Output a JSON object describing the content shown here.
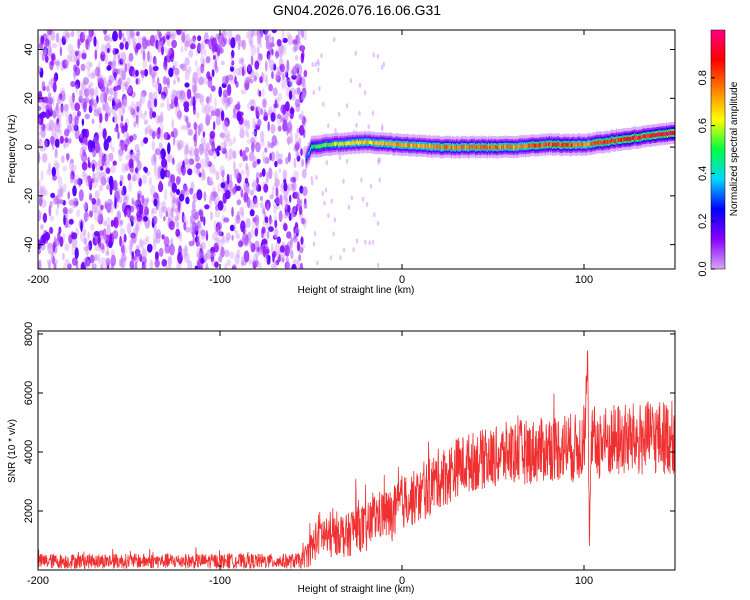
{
  "figure": {
    "title": "GN04.2026.076.16.06.G31"
  },
  "chart_data": [
    {
      "type": "heatmap",
      "title": "GN04.2026.076.16.06.G31",
      "xlabel": "Height of straight line (km)",
      "ylabel": "Frequency (Hz)",
      "xlim": [
        -200,
        150
      ],
      "ylim": [
        -50,
        48
      ],
      "x_ticks": [
        -200,
        -100,
        0,
        100
      ],
      "y_ticks": [
        -40,
        -20,
        0,
        20,
        40
      ],
      "grid": false,
      "colorbar": {
        "label": "Normalized spectral amplitude",
        "range": [
          0.0,
          1.0
        ],
        "ticks": [
          0.0,
          0.2,
          0.4,
          0.6,
          0.8
        ],
        "colormap": [
          "#d8a6f8",
          "#8800ff",
          "#0000ff",
          "#00d8ff",
          "#00ff40",
          "#ffff00",
          "#ff8000",
          "#ff0000",
          "#ff0080"
        ]
      },
      "noise_region_x": [
        -200,
        -53
      ],
      "signal_band": {
        "x": [
          -53,
          -50,
          -40,
          -20,
          0,
          20,
          40,
          60,
          80,
          90,
          100,
          110,
          120,
          130,
          140,
          150
        ],
        "frequency": [
          -5,
          0,
          1,
          2,
          1,
          0,
          0,
          0,
          1,
          1,
          1,
          2,
          3,
          4,
          5,
          6
        ],
        "peak_amplitude": [
          0.3,
          0.5,
          0.6,
          0.7,
          0.75,
          0.8,
          0.8,
          0.8,
          0.85,
          0.85,
          0.8,
          0.85,
          0.9,
          0.9,
          0.95,
          1.0
        ]
      }
    },
    {
      "type": "line",
      "xlabel": "Height of straight line (km)",
      "ylabel": "SNR (10 * v/v)",
      "xlim": [
        -200,
        150
      ],
      "ylim": [
        0,
        8100
      ],
      "x_ticks": [
        -200,
        -100,
        0,
        100
      ],
      "y_ticks": [
        2000,
        4000,
        6000,
        8000
      ],
      "grid": false,
      "color": "#f03030",
      "series": [
        {
          "x": [
            -200,
            -180,
            -160,
            -140,
            -120,
            -100,
            -80,
            -60,
            -55,
            -50,
            -45,
            -40,
            -35,
            -30,
            -25,
            -20,
            -15,
            -10,
            -5,
            0,
            5,
            10,
            15,
            20,
            25,
            30,
            40,
            50,
            60,
            70,
            80,
            90,
            95,
            100,
            102,
            103,
            104,
            105,
            110,
            120,
            130,
            140,
            150
          ],
          "values": [
            300,
            300,
            300,
            300,
            300,
            300,
            300,
            300,
            320,
            700,
            1300,
            1000,
            1300,
            1100,
            1600,
            1300,
            1800,
            1900,
            1800,
            2300,
            2400,
            2500,
            2800,
            3100,
            3200,
            3500,
            3700,
            3800,
            4000,
            4000,
            4100,
            4200,
            4100,
            4300,
            7000,
            600,
            4200,
            4300,
            4300,
            4400,
            4400,
            4500,
            4500
          ],
          "spread": [
            300,
            300,
            300,
            300,
            300,
            300,
            300,
            300,
            320,
            700,
            900,
            800,
            900,
            900,
            1000,
            1000,
            1000,
            1000,
            1100,
            1100,
            1100,
            1100,
            1200,
            1200,
            1200,
            1200,
            1200,
            1200,
            1300,
            1300,
            1300,
            1400,
            1400,
            1400,
            1000,
            200,
            1400,
            1500,
            1500,
            1500,
            1500,
            1500,
            1500
          ]
        }
      ]
    }
  ]
}
